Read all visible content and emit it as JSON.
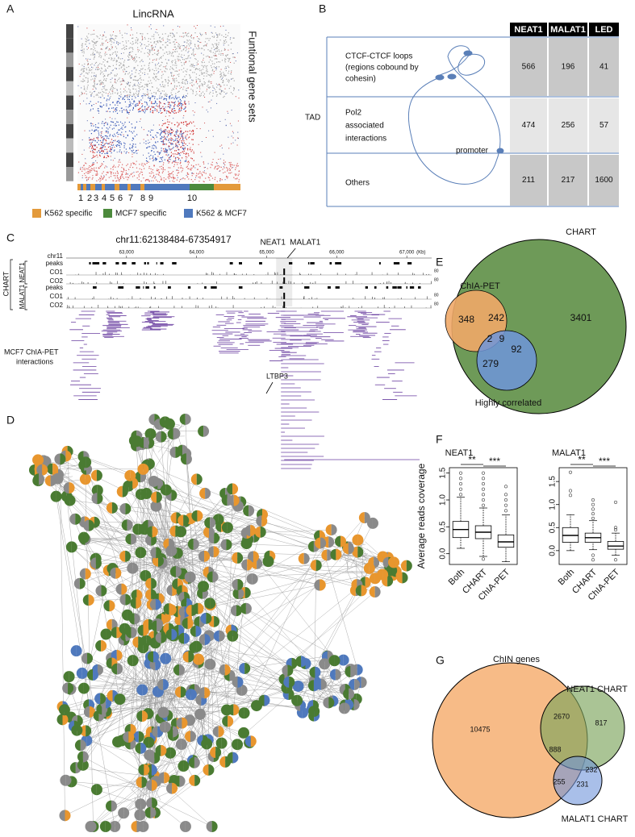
{
  "panel_labels": [
    "A",
    "B",
    "C",
    "D",
    "E",
    "F",
    "G"
  ],
  "panel_a": {
    "title": "LincRNA",
    "side_label": "Funtional gene sets",
    "cluster_numbers": [
      1,
      2,
      3,
      4,
      5,
      6,
      7,
      8,
      9,
      10
    ],
    "legend": [
      {
        "name": "K562  specific",
        "color": "#e39a3b"
      },
      {
        "name": "MCF7 specific",
        "color": "#4c8a3c"
      },
      {
        "name": "K562 & MCF7",
        "color": "#4f79bd"
      }
    ]
  },
  "panel_b": {
    "columns": [
      "NEAT1",
      "MALAT1",
      "LED"
    ],
    "tad_label": "TAD",
    "promoter_label": "promoter",
    "rows": [
      {
        "label": [
          "CTCF-CTCF loops",
          "(regions cobound by",
          "cohesin)"
        ],
        "values": [
          566,
          196,
          41
        ]
      },
      {
        "label": [
          "Pol2",
          "associated",
          "interactions"
        ],
        "values": [
          474,
          256,
          57
        ]
      },
      {
        "label": [
          "Others"
        ],
        "values": [
          211,
          217,
          1600
        ]
      }
    ]
  },
  "panel_c": {
    "region": "chr11:62138484-67354917",
    "chrom": "chr11",
    "xlim": [
      62138.484,
      67354.917
    ],
    "xticks": [
      {
        "value": 63000,
        "label": "63,000"
      },
      {
        "value": 64000,
        "label": "64,000"
      },
      {
        "value": 65000,
        "label": "65,000"
      },
      {
        "value": 66000,
        "label": "66,000"
      },
      {
        "value": 67000,
        "label": "67,000"
      }
    ],
    "unit": "(Kb)",
    "genes": [
      "NEAT1",
      "MALAT1"
    ],
    "group": "CHART",
    "subgroups": [
      "NEAT1",
      "MALAT1"
    ],
    "tracks": [
      "peaks",
      "CO1",
      "CO2"
    ],
    "scale": 80,
    "interactions_label": [
      "MCF7 ChIA-PET",
      "interactions"
    ],
    "gene_label": "LTBP3"
  },
  "panel_e": {
    "sets": [
      "CHART",
      "ChIA-PET",
      "Highly correlated"
    ],
    "counts": [
      348,
      242,
      3401,
      2,
      9,
      92,
      279
    ]
  },
  "panel_f": {
    "ylabel": "Average reads coverage",
    "significance": [
      "**",
      "***"
    ],
    "charts": [
      {
        "title": "NEAT1",
        "ylim": [
          -0.2,
          1.6
        ],
        "yticks": [
          {
            "value": 0,
            "label": "0.0"
          },
          {
            "value": 0.5,
            "label": "0.5"
          },
          {
            "value": 1,
            "label": "1.0"
          },
          {
            "value": 1.5,
            "label": "1.5"
          }
        ],
        "categories": [
          "Both",
          "CHART",
          "ChIA-PET"
        ],
        "boxes": [
          {
            "min": 0.1,
            "q1": 0.3,
            "median": 0.45,
            "q3": 0.6,
            "max": 1.05,
            "outliers": [
              1.1,
              1.2,
              1.3,
              1.4,
              1.5
            ]
          },
          {
            "min": -0.05,
            "q1": 0.28,
            "median": 0.4,
            "q3": 0.52,
            "max": 0.85,
            "outliers": [
              -0.1,
              0.9,
              1.0,
              1.1,
              1.2,
              1.3,
              1.4,
              1.5
            ]
          },
          {
            "min": -0.15,
            "q1": 0.12,
            "median": 0.22,
            "q3": 0.35,
            "max": 0.72,
            "outliers": [
              0.8,
              0.9,
              1.0,
              1.1,
              1.25
            ]
          }
        ]
      },
      {
        "title": "MALAT1",
        "ylim": [
          -0.3,
          1.8
        ],
        "yticks": [
          {
            "value": 0,
            "label": "0.0"
          },
          {
            "value": 0.5,
            "label": "0.5"
          },
          {
            "value": 1,
            "label": "1.0"
          },
          {
            "value": 1.5,
            "label": "1.5"
          }
        ],
        "categories": [
          "Both",
          "CHART",
          "ChIA-PET"
        ],
        "boxes": [
          {
            "min": 0,
            "q1": 0.18,
            "median": 0.33,
            "q3": 0.5,
            "max": 0.78,
            "outliers": [
              1.2,
              1.3,
              1.7
            ]
          },
          {
            "min": 0.02,
            "q1": 0.18,
            "median": 0.28,
            "q3": 0.38,
            "max": 0.65,
            "outliers": [
              -0.1,
              -0.2,
              0.7,
              0.8,
              0.9,
              1.0,
              1.1
            ]
          },
          {
            "min": -0.1,
            "q1": 0.03,
            "median": 0.1,
            "q3": 0.2,
            "max": 0.38,
            "outliers": [
              -0.2,
              0.45,
              0.5,
              1.05
            ]
          }
        ]
      }
    ]
  },
  "panel_g": {
    "sets": [
      "ChIN genes",
      "NEAT1 CHART",
      "MALAT1 CHART"
    ],
    "counts": [
      10475,
      2670,
      817,
      888,
      232,
      255,
      231
    ]
  }
}
